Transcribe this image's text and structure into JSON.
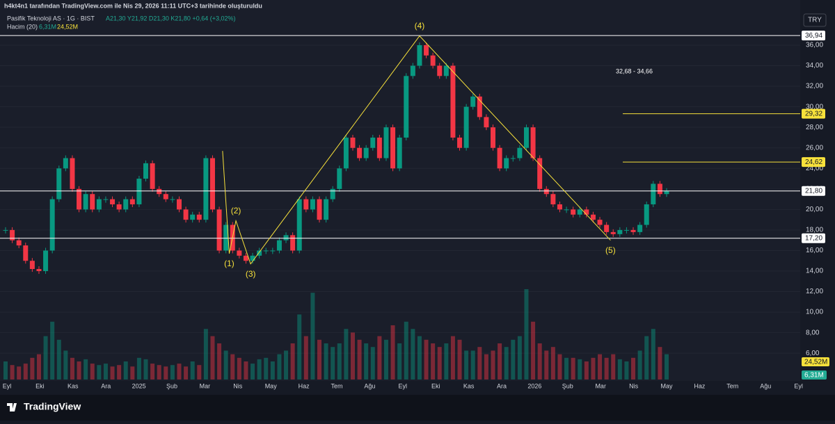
{
  "header": {
    "credit": "h4kt4n1 tarafından TradingView.com ile Nis 29, 2026 11:11 UTC+3 tarihinde oluşturuldu",
    "symbol": "Pasifik Teknoloji AS · 1G · BIST",
    "ohlc": "A21,30 Y21,92 D21,30 K21,80 +0,64 (+3,02%)",
    "volume_label": "Hacim (20)",
    "volume_value": "6,31M",
    "volume_ma": "24,52M",
    "currency": "TRY"
  },
  "footer": {
    "brand": "TradingView"
  },
  "chart_data": {
    "type": "candlestick",
    "up_color": "#089981",
    "down_color": "#f23645",
    "close": [
      18,
      17,
      16.5,
      15,
      14.2,
      14,
      16,
      21,
      24,
      25,
      22,
      20,
      21.5,
      20,
      21,
      21,
      20.5,
      20,
      21,
      20.5,
      23,
      24.5,
      22,
      21.5,
      21,
      21,
      20,
      19,
      19.5,
      19,
      25,
      20,
      16,
      18.5,
      16,
      15.5,
      15,
      15.5,
      16,
      16,
      16,
      17,
      17.5,
      16,
      21,
      20,
      21,
      19,
      21,
      22,
      24,
      27,
      26,
      25,
      26,
      27,
      25,
      28,
      24,
      27,
      33,
      34,
      36,
      35,
      34,
      33,
      34,
      27,
      26,
      30,
      31,
      29,
      28,
      26,
      24,
      25,
      25,
      26,
      28,
      25,
      22,
      21.5,
      20.5,
      20,
      20,
      19.5,
      20,
      19.5,
      19,
      18.5,
      17.8,
      17.6,
      18,
      18,
      17.8,
      18.5,
      20.5,
      22.5,
      21.5,
      21.8
    ],
    "volume": [
      25,
      20,
      18,
      22,
      30,
      35,
      60,
      80,
      55,
      40,
      30,
      25,
      28,
      22,
      20,
      22,
      18,
      20,
      25,
      18,
      30,
      28,
      22,
      20,
      18,
      20,
      22,
      18,
      25,
      20,
      70,
      60,
      50,
      40,
      35,
      30,
      25,
      22,
      28,
      30,
      25,
      35,
      40,
      50,
      90,
      60,
      120,
      55,
      50,
      45,
      50,
      70,
      65,
      55,
      50,
      45,
      60,
      55,
      75,
      50,
      80,
      70,
      60,
      55,
      50,
      45,
      50,
      60,
      55,
      40,
      40,
      45,
      35,
      40,
      50,
      45,
      55,
      60,
      125,
      80,
      50,
      40,
      45,
      35,
      30,
      30,
      28,
      25,
      30,
      35,
      30,
      35,
      28,
      25,
      30,
      40,
      60,
      70,
      45,
      35
    ],
    "months": [
      "Eyl",
      "Eki",
      "Kas",
      "Ara",
      "2025",
      "Şub",
      "Mar",
      "Nis",
      "May",
      "Haz",
      "Tem",
      "Ağu",
      "Eyl",
      "Eki",
      "Kas",
      "Ara",
      "2026",
      "Şub",
      "Mar",
      "Nis",
      "May",
      "Haz",
      "Tem",
      "Ağu",
      "Eyl"
    ],
    "ylim": [
      2.8,
      39
    ],
    "yticks": [
      {
        "value": 6,
        "label": "6,00"
      },
      {
        "value": 8,
        "label": "8,00"
      },
      {
        "value": 10,
        "label": "10,00"
      },
      {
        "value": 12,
        "label": "12,00"
      },
      {
        "value": 14,
        "label": "14,00"
      },
      {
        "value": 16,
        "label": "16,00"
      },
      {
        "value": 18,
        "label": "18,00"
      },
      {
        "value": 20,
        "label": "20,00"
      },
      {
        "value": 22,
        "label": "22,00"
      },
      {
        "value": 24,
        "label": "24,00"
      },
      {
        "value": 26,
        "label": "26,00"
      },
      {
        "value": 28,
        "label": "28,00"
      },
      {
        "value": 30,
        "label": "30,00"
      },
      {
        "value": 32,
        "label": "32,00"
      },
      {
        "value": 34,
        "label": "34,00"
      },
      {
        "value": 36,
        "label": "36,00"
      }
    ],
    "levels": [
      {
        "value": 36.94,
        "label": "36,94",
        "color": "#ffffff",
        "extend": "full"
      },
      {
        "value": 29.32,
        "label": "29,32",
        "color": "#f7e13b",
        "extend": "right"
      },
      {
        "value": 24.62,
        "label": "24,62",
        "color": "#f7e13b",
        "extend": "right"
      },
      {
        "value": 21.8,
        "label": "21,80",
        "color": "#ffffff",
        "extend": "full"
      },
      {
        "value": 17.2,
        "label": "17,20",
        "color": "#ffffff",
        "extend": "full"
      }
    ],
    "zone_note": "32,68 - 34,66",
    "waves": [
      {
        "at": 32.5,
        "value": 25.7,
        "label": ""
      },
      {
        "at": 33.5,
        "value": 15.7,
        "label": "(1)"
      },
      {
        "at": 34.5,
        "value": 18.9,
        "label": "(2)"
      },
      {
        "at": 36.7,
        "value": 14.7,
        "label": "(3)"
      },
      {
        "at": 62,
        "value": 36.9,
        "label": "(4)"
      },
      {
        "at": 90.6,
        "value": 17,
        "label": "(5)"
      }
    ]
  }
}
